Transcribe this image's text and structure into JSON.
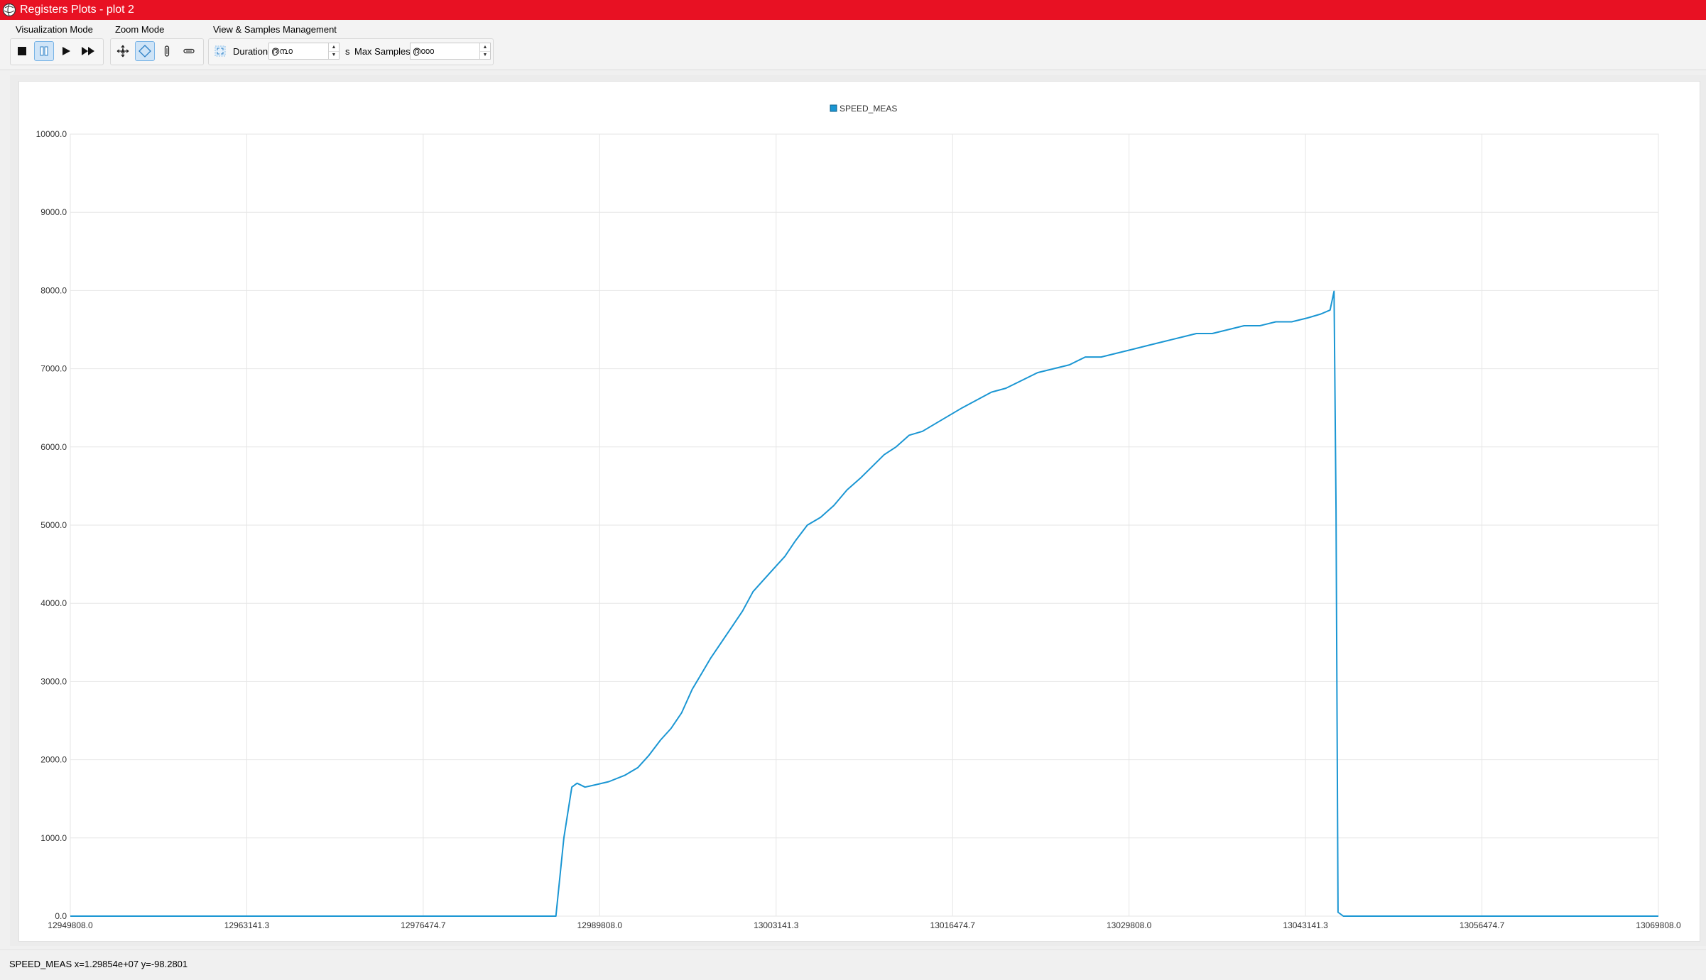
{
  "window": {
    "title": "Registers Plots - plot 2",
    "accent_color": "#e81123",
    "app_icon": "globe-logo-icon"
  },
  "toolbar": {
    "visualization_mode": {
      "label": "Visualization Mode",
      "buttons": [
        {
          "name": "stop",
          "icon": "stop-icon",
          "active": false
        },
        {
          "name": "pause",
          "icon": "pause-icon",
          "active": true
        },
        {
          "name": "play",
          "icon": "play-icon",
          "active": false
        },
        {
          "name": "fast-forward",
          "icon": "fast-forward-icon",
          "active": false
        }
      ]
    },
    "zoom_mode": {
      "label": "Zoom Mode",
      "buttons": [
        {
          "name": "zoom-auto",
          "icon": "zoom-auto-icon",
          "active": false
        },
        {
          "name": "zoom-both",
          "icon": "zoom-both-icon",
          "active": true
        },
        {
          "name": "zoom-vertical",
          "icon": "zoom-vertical-icon",
          "active": false
        },
        {
          "name": "zoom-horizontal",
          "icon": "zoom-horizontal-icon",
          "active": false
        }
      ]
    },
    "view_samples": {
      "label": "View & Samples Management",
      "fit_icon": "fit-view-icon",
      "duration_label": "Duration",
      "duration_value": "൫൩൦",
      "duration_unit": "s",
      "max_samples_label": "Max Samples",
      "max_samples_value": "൫൦൦൦"
    }
  },
  "chart_data": {
    "type": "line",
    "legend": [
      "SPEED_MEAS"
    ],
    "legend_position": "top-center",
    "series": [
      {
        "name": "SPEED_MEAS",
        "color": "#1a96d3",
        "points": [
          [
            12949808,
            0
          ],
          [
            12986500,
            0
          ],
          [
            12987100,
            1000
          ],
          [
            12987700,
            1650
          ],
          [
            12988100,
            1700
          ],
          [
            12988700,
            1650
          ],
          [
            12989500,
            1680
          ],
          [
            12990500,
            1720
          ],
          [
            12991700,
            1800
          ],
          [
            12992700,
            1900
          ],
          [
            12993500,
            2050
          ],
          [
            12994400,
            2250
          ],
          [
            12995200,
            2400
          ],
          [
            12996000,
            2600
          ],
          [
            12996800,
            2900
          ],
          [
            12997500,
            3100
          ],
          [
            12998200,
            3300
          ],
          [
            12999000,
            3500
          ],
          [
            12999800,
            3700
          ],
          [
            13000600,
            3900
          ],
          [
            13001400,
            4150
          ],
          [
            13002200,
            4300
          ],
          [
            13003000,
            4450
          ],
          [
            13003800,
            4600
          ],
          [
            13004600,
            4800
          ],
          [
            13005500,
            5000
          ],
          [
            13006500,
            5100
          ],
          [
            13007500,
            5250
          ],
          [
            13008500,
            5450
          ],
          [
            13009500,
            5600
          ],
          [
            13010400,
            5750
          ],
          [
            13011300,
            5900
          ],
          [
            13012200,
            6000
          ],
          [
            13013200,
            6150
          ],
          [
            13014200,
            6200
          ],
          [
            13015200,
            6300
          ],
          [
            13016200,
            6400
          ],
          [
            13017200,
            6500
          ],
          [
            13018300,
            6600
          ],
          [
            13019400,
            6700
          ],
          [
            13020500,
            6750
          ],
          [
            13021700,
            6850
          ],
          [
            13022900,
            6950
          ],
          [
            13024100,
            7000
          ],
          [
            13025300,
            7050
          ],
          [
            13026500,
            7150
          ],
          [
            13027700,
            7150
          ],
          [
            13028900,
            7200
          ],
          [
            13030100,
            7250
          ],
          [
            13031300,
            7300
          ],
          [
            13032500,
            7350
          ],
          [
            13033700,
            7400
          ],
          [
            13034900,
            7450
          ],
          [
            13036100,
            7450
          ],
          [
            13037300,
            7500
          ],
          [
            13038500,
            7550
          ],
          [
            13039700,
            7550
          ],
          [
            13040900,
            7600
          ],
          [
            13042100,
            7600
          ],
          [
            13043300,
            7650
          ],
          [
            13044300,
            7700
          ],
          [
            13045000,
            7750
          ],
          [
            13045300,
            7990
          ],
          [
            13045450,
            5200
          ],
          [
            13045600,
            50
          ],
          [
            13046000,
            0
          ],
          [
            13069808,
            0
          ]
        ]
      }
    ],
    "x_ticks": [
      "12949808.0",
      "12963141.3",
      "12976474.7",
      "12989808.0",
      "13003141.3",
      "13016474.7",
      "13029808.0",
      "13043141.3",
      "13056474.7",
      "13069808.0"
    ],
    "y_ticks": [
      "10000.0",
      "9000.0",
      "8000.0",
      "7000.0",
      "6000.0",
      "5000.0",
      "4000.0",
      "3000.0",
      "2000.0",
      "1000.0",
      "0.0"
    ],
    "xlim": [
      12949808,
      13069808
    ],
    "ylim": [
      0,
      10000
    ],
    "grid": true
  },
  "status": {
    "text": "SPEED_MEAS x=1.29854e+07 y=-98.2801"
  }
}
